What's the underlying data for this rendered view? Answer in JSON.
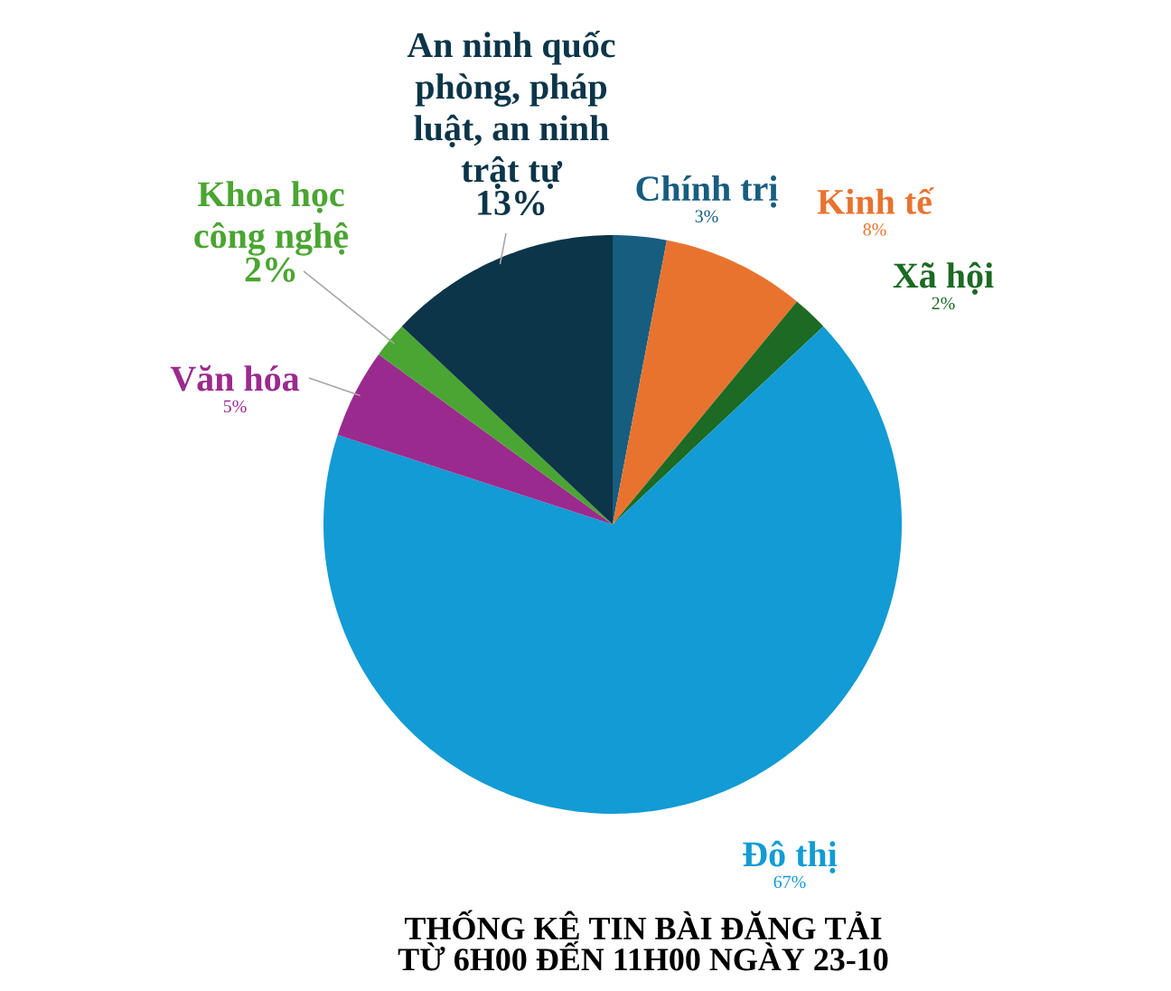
{
  "chart_data": {
    "type": "pie",
    "title": "THỐNG KÊ TIN BÀI ĐĂNG TẢI TỪ 6H00 ĐẾN 11H00 NGÀY 23-10",
    "categories": [
      "Chính trị",
      "Kinh tế",
      "Xã hội",
      "Đô thị",
      "Văn hóa",
      "Khoa học công nghệ",
      "An ninh quốc phòng, pháp luật, an ninh trật tự"
    ],
    "values": [
      3,
      8,
      2,
      67,
      5,
      2,
      13
    ],
    "value_labels": [
      "3%",
      "8%",
      "2%",
      "67%",
      "5%",
      "2%",
      "13%"
    ],
    "colors": [
      "#175d80",
      "#e8732f",
      "#1c6a24",
      "#129bd4",
      "#9b2a8e",
      "#4aa532",
      "#0c3549"
    ]
  }
}
